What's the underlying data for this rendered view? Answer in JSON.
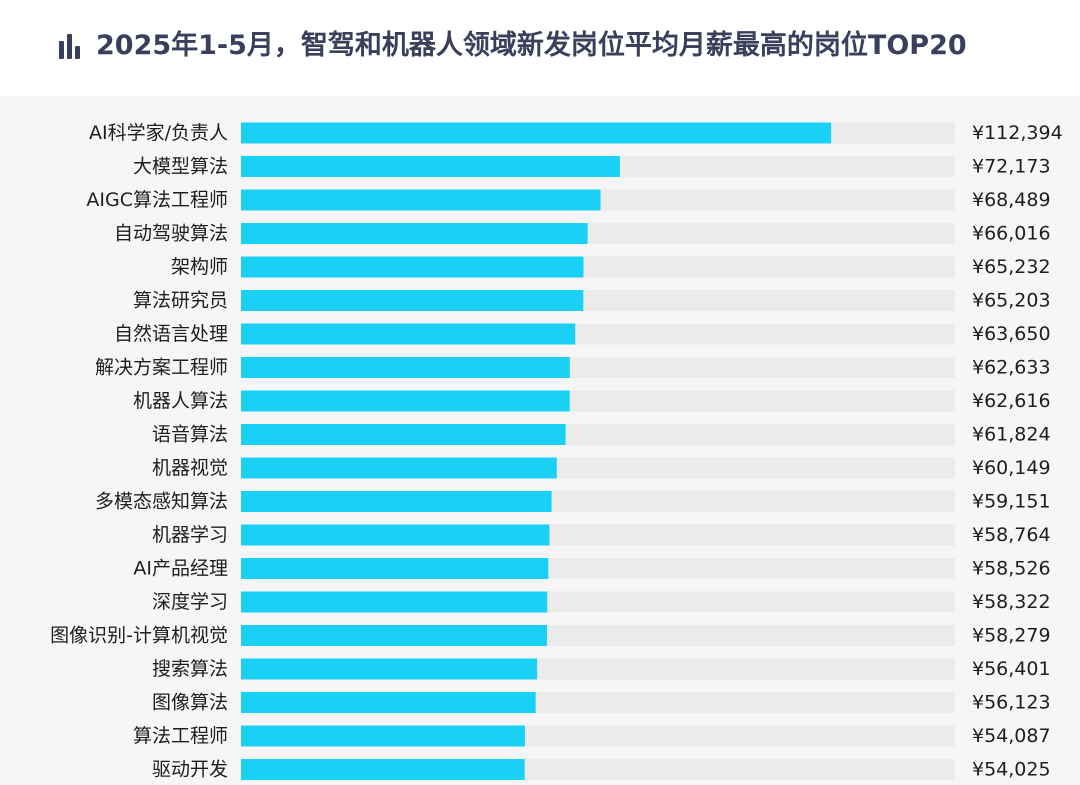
{
  "title": "2025年1-5月，智驾和机器人领域新发岗位平均月薪最高的岗位TOP20",
  "title_icon": "bar-chart-icon",
  "colors": {
    "bar": "#1ad1f5",
    "track": "#ebebeb",
    "title": "#3a3f5c",
    "background": "#f6f6f6"
  },
  "chart_data": {
    "type": "bar",
    "orientation": "horizontal",
    "title": "2025年1-5月，智驾和机器人领域新发岗位平均月薪最高的岗位TOP20",
    "xlabel": "",
    "ylabel": "",
    "value_prefix": "¥",
    "xlim": [
      0,
      136000
    ],
    "grid": false,
    "legend": "none",
    "categories": [
      "AI科学家/负责人",
      "大模型算法",
      "AIGC算法工程师",
      "自动驾驶算法",
      "架构师",
      "算法研究员",
      "自然语言处理",
      "解决方案工程师",
      "机器人算法",
      "语音算法",
      "机器视觉",
      "多模态感知算法",
      "机器学习",
      "AI产品经理",
      "深度学习",
      "图像识别-计算机视觉",
      "搜索算法",
      "图像算法",
      "算法工程师",
      "驱动开发"
    ],
    "values": [
      112394,
      72173,
      68489,
      66016,
      65232,
      65203,
      63650,
      62633,
      62616,
      61824,
      60149,
      59151,
      58764,
      58526,
      58322,
      58279,
      56401,
      56123,
      54087,
      54025
    ],
    "value_labels": [
      "¥112,394",
      "¥72,173",
      "¥68,489",
      "¥66,016",
      "¥65,232",
      "¥65,203",
      "¥63,650",
      "¥62,633",
      "¥62,616",
      "¥61,824",
      "¥60,149",
      "¥59,151",
      "¥58,764",
      "¥58,526",
      "¥58,322",
      "¥58,279",
      "¥56,401",
      "¥56,123",
      "¥54,087",
      "¥54,025"
    ]
  }
}
